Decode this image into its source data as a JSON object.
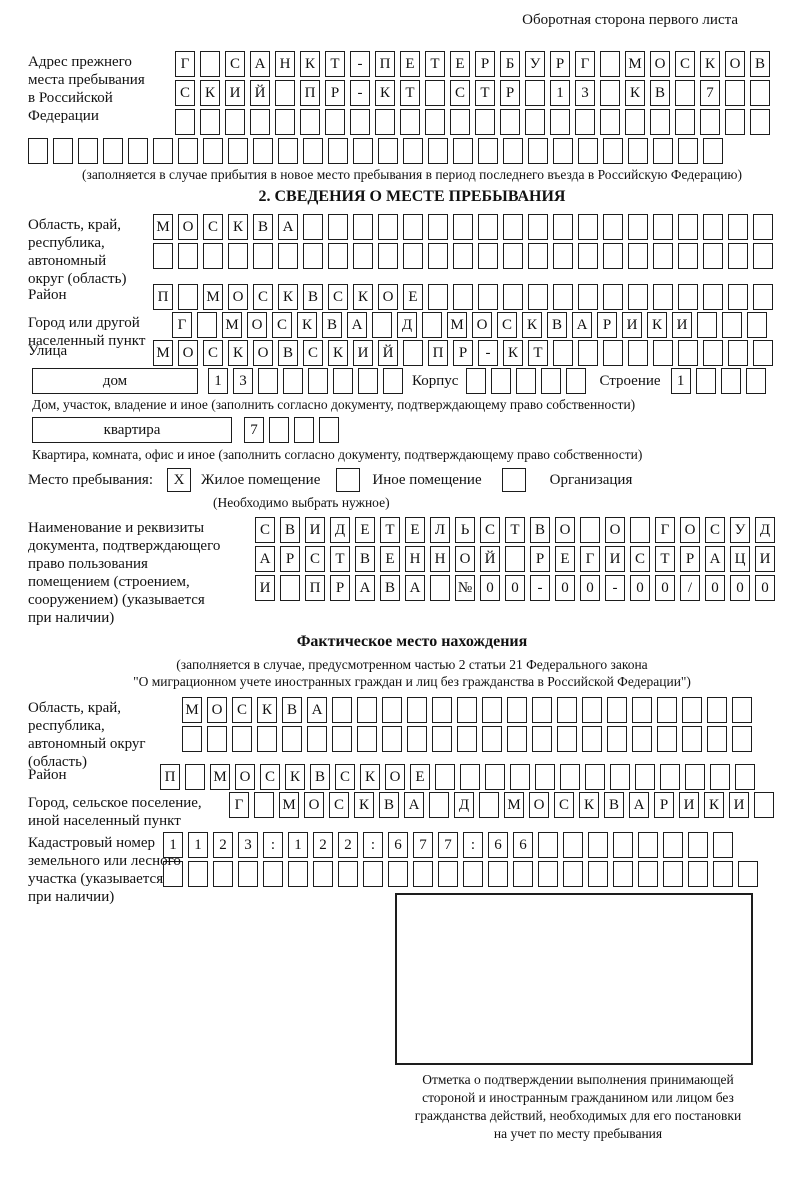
{
  "header_note": "Оборотная сторона первого листа",
  "prev_address": {
    "label_lines": [
      "Адрес прежнего",
      "места пребывания",
      "в Российской",
      "Федерации"
    ],
    "rows": [
      {
        "text": "Г САНКТ-ПЕТЕРБУРГ МОСКОВ",
        "count": 24
      },
      {
        "text": "СКИЙ ПР-КТ СТР 13 КВ 7",
        "count": 24
      },
      {
        "text": "",
        "count": 24
      }
    ],
    "full_row": {
      "text": "",
      "count": 28
    },
    "note": "(заполняется в случае прибытия в новое место пребывания в период последнего въезда в Российскую Федерацию)"
  },
  "section2": {
    "title": "2. СВЕДЕНИЯ О МЕСТЕ ПРЕБЫВАНИЯ",
    "region": {
      "label_lines": [
        "Область, край,",
        "республика,",
        "автономный",
        "округ (область)"
      ],
      "rows": [
        {
          "text": "МОСКВА",
          "count": 25
        },
        {
          "text": "",
          "count": 25
        }
      ]
    },
    "district": {
      "label": "Район",
      "row": {
        "text": "П МОСКВСКОЕ",
        "count": 25
      }
    },
    "city": {
      "label_lines": [
        "Город или другой",
        "населенный пункт"
      ],
      "row": {
        "text": "Г МОСКВА Д МОСКВАРИКИ",
        "count": 24
      }
    },
    "street": {
      "label": "Улица",
      "row": {
        "text": "МОСКОВСКИЙ ПР-КТ",
        "count": 25
      }
    },
    "house": {
      "box_label": "дом",
      "row": {
        "text": "13",
        "count": 8
      },
      "korpus_label": "Корпус",
      "korpus_row": {
        "text": "",
        "count": 5
      },
      "stroenie_label": "Строение",
      "stroenie_row": {
        "text": "1",
        "count": 4
      },
      "note": "Дом, участок, владение и иное (заполнить согласно документу, подтверждающему право собственности)"
    },
    "apartment": {
      "box_label": "квартира",
      "row": {
        "text": "7",
        "count": 4
      },
      "note": "Квартира, комната, офис и иное (заполнить согласно документу, подтверждающему право собственности)"
    },
    "stay": {
      "label": "Место пребывания:",
      "options": [
        {
          "label": "Жилое помещение",
          "mark": "X"
        },
        {
          "label": "Иное помещение",
          "mark": ""
        },
        {
          "label": "Организация",
          "mark": ""
        }
      ],
      "note": "(Необходимо выбрать нужное)"
    },
    "doc": {
      "label_lines": [
        "Наименование и реквизиты",
        "документа, подтверждающего",
        "право пользования",
        "помещением (строением,",
        "сооружением) (указывается",
        "при наличии)"
      ],
      "rows": [
        {
          "text": "СВИДЕТЕЛЬСТВО О ГОСУД",
          "count": 21
        },
        {
          "text": "АРСТВЕННОЙ РЕГИСТРАЦИ",
          "count": 21
        },
        {
          "text": "И ПРАВА №00-00-00/000",
          "count": 21
        }
      ]
    }
  },
  "actual_location": {
    "title": "Фактическое место нахождения",
    "note_lines": [
      "(заполняется в случае, предусмотренном частью 2 статьи 21 Федерального закона",
      "\"О миграционном учете иностранных граждан и лиц без гражданства в Российской Федерации\")"
    ],
    "region": {
      "label_lines": [
        "Область, край,",
        "республика,",
        "автономный округ",
        "(область)"
      ],
      "rows": [
        {
          "text": "МОСКВА",
          "count": 23
        },
        {
          "text": "",
          "count": 23
        }
      ]
    },
    "district": {
      "label": "Район",
      "row": {
        "text": "П МОСКВСКОЕ",
        "count": 24
      }
    },
    "city": {
      "label_lines": [
        "Город, сельское поселение,",
        "иной населенный пункт"
      ],
      "row": {
        "text": "Г МОСКВА Д МОСКВАРИКИ",
        "count": 22
      }
    },
    "cadastre": {
      "label_lines": [
        "Кадастровый номер",
        "земельного или лесного",
        "участка (указывается",
        "при наличии)"
      ],
      "rows": [
        {
          "text": "1123:122:677:66",
          "count": 23
        },
        {
          "text": "",
          "count": 24
        }
      ]
    },
    "mark_note_lines": [
      "Отметка о подтверждении выполнения принимающей",
      "стороной и иностранным гражданином или лицом без",
      "гражданства действий, необходимых для его постановки",
      "на учет по месту пребывания"
    ]
  }
}
